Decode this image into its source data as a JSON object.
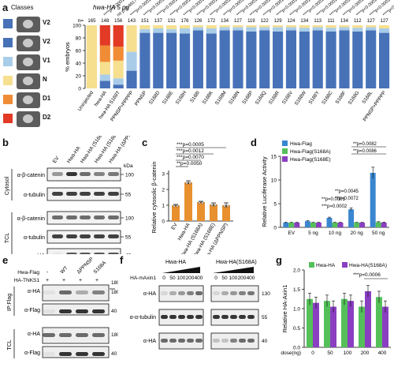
{
  "panels": {
    "a": "a",
    "b": "b",
    "c": "c",
    "d": "d",
    "e": "e",
    "f": "f",
    "g": "g"
  },
  "colors": {
    "V2": "#4872b8",
    "V1": "#a9cde8",
    "N": "#f6df8f",
    "D1": "#f08c36",
    "D2": "#e23a25",
    "c_bar": "#e8902e",
    "blue": "#3a86d0",
    "green": "#55c05a",
    "purple": "#8a3fc1"
  },
  "panel_a": {
    "classes_title": "Classes",
    "classes": [
      "V2",
      "V2",
      "V1",
      "N",
      "D1",
      "D2"
    ],
    "header": "hwa-HA 5 pg",
    "n_label": "n=",
    "ylabel": "% embryos",
    "yticks": [
      "0",
      "20",
      "40",
      "60",
      "80",
      "100"
    ],
    "pvals_near": [
      "****p<0.0001",
      "ns p=0.4917"
    ],
    "pval_generic": "****p<0.0001",
    "pval_count": 20,
    "chart_data": {
      "type": "bar",
      "stacked": true,
      "categories": [
        "Uninjected",
        "hwa-HA",
        "hwa-HA S168T",
        "PPNSP>PPPPP",
        "PPNSP",
        "S168D",
        "S168E",
        "S168H",
        "S168I",
        "S168K",
        "S168M",
        "S168N",
        "S168P",
        "S168Q",
        "S168R",
        "S168V",
        "S168W",
        "S168Y",
        "S168C",
        "S168F",
        "S168G",
        "S168L",
        "PPNSP>PPPPP"
      ],
      "n": [
        165,
        148,
        156,
        143,
        151,
        137,
        131,
        176,
        126,
        172,
        134,
        127,
        119,
        122,
        129,
        124,
        134,
        113,
        111,
        134,
        112,
        127,
        127
      ],
      "series": [
        {
          "name": "V2",
          "values": [
            0,
            12,
            6,
            28,
            88,
            88,
            88,
            87,
            92,
            87,
            92,
            92,
            90,
            92,
            90,
            92,
            90,
            92,
            90,
            92,
            90,
            92,
            88
          ]
        },
        {
          "name": "V1",
          "values": [
            0,
            10,
            10,
            30,
            6,
            7,
            6,
            8,
            5,
            8,
            5,
            5,
            7,
            5,
            7,
            5,
            6,
            5,
            6,
            5,
            6,
            5,
            7
          ]
        },
        {
          "name": "N",
          "values": [
            100,
            20,
            28,
            42,
            6,
            5,
            6,
            5,
            3,
            5,
            3,
            3,
            3,
            3,
            3,
            3,
            4,
            3,
            4,
            3,
            4,
            3,
            5
          ]
        },
        {
          "name": "D1",
          "values": [
            0,
            26,
            22,
            0,
            0,
            0,
            0,
            0,
            0,
            0,
            0,
            0,
            0,
            0,
            0,
            0,
            0,
            0,
            0,
            0,
            0,
            0,
            0
          ]
        },
        {
          "name": "D2",
          "values": [
            0,
            32,
            34,
            0,
            0,
            0,
            0,
            0,
            0,
            0,
            0,
            0,
            0,
            0,
            0,
            0,
            0,
            0,
            0,
            0,
            0,
            0,
            0
          ]
        }
      ],
      "ylim": [
        0,
        100
      ]
    }
  },
  "panel_b": {
    "lanes": [
      "EV",
      "Hwa-HA",
      "Hwa-HA (S168A)",
      "Hwa-HA (S168E)",
      "Hwa-HA (ΔPPNSP)"
    ],
    "kda": "kDa",
    "groups": [
      {
        "name": "Cytosol",
        "rows": [
          "α-β-catenin",
          "α-tubulin"
        ],
        "mw": [
          "100",
          "55"
        ]
      },
      {
        "name": "TCL",
        "rows": [
          "α-β-catenin",
          "α-tubulin",
          "α-HA"
        ],
        "mw": [
          "100",
          "55",
          "40"
        ]
      }
    ]
  },
  "panel_c": {
    "ylabel": "Relative cytosolic β-catenin",
    "yticks": [
      "0",
      "1",
      "2",
      "3"
    ],
    "pvals": [
      "***p=0.0005",
      "***p=0.0012",
      "***p=0.0070",
      "**p=0.0050"
    ],
    "chart_data": {
      "type": "bar",
      "categories": [
        "EV",
        "Hwa-HA",
        "Hwa-HA (S168A)",
        "Hwa-HA (S168E)",
        "Hwa-HA (ΔPPNSP)"
      ],
      "values": [
        1.0,
        2.45,
        1.2,
        1.05,
        1.0
      ],
      "errors": [
        0.05,
        0.1,
        0.05,
        0.1,
        0.15
      ],
      "ylim": [
        0,
        3
      ]
    }
  },
  "panel_d": {
    "ylabel": "Relative Luciferase Activity",
    "yticks": [
      "0",
      "5",
      "10",
      "15"
    ],
    "pvals": [
      "**p=0.0082",
      "**p=0.0086",
      "**p=0.0045",
      "**p=0.0072",
      "**p=0.0001",
      "***p=0.0002"
    ],
    "chart_data": {
      "type": "bar",
      "categories": [
        "EV",
        "5 ng",
        "10 ng",
        "20 ng",
        "50 ng"
      ],
      "series": [
        {
          "name": "Hwa-Flag",
          "values": [
            1.0,
            1.3,
            2.0,
            3.8,
            11.5
          ],
          "errors": [
            0.1,
            0.1,
            0.15,
            0.3,
            1.2
          ]
        },
        {
          "name": "Hwa-Flag(S168A)",
          "values": [
            1.0,
            1.0,
            1.0,
            1.0,
            1.1
          ],
          "errors": [
            0.05,
            0.05,
            0.05,
            0.05,
            0.1
          ]
        },
        {
          "name": "Hwa-Flag(S168E)",
          "values": [
            1.0,
            1.0,
            1.0,
            1.0,
            1.0
          ],
          "errors": [
            0.05,
            0.05,
            0.05,
            0.05,
            0.1
          ]
        }
      ],
      "ylim": [
        0,
        15
      ]
    }
  },
  "panel_e": {
    "rows": [
      {
        "label": "Hwa-Flag",
        "marks": [
          "-",
          "WT",
          "ΔPPNSP",
          "S168A"
        ]
      },
      {
        "label": "HA-TNKS1",
        "marks": [
          "+",
          "+",
          "+",
          "+"
        ]
      }
    ],
    "groups": [
      {
        "name": "IP:Flag",
        "rows": [
          "α-HA",
          "α-Flag"
        ],
        "mw": [
          "180",
          "40"
        ]
      },
      {
        "name": "TCL",
        "rows": [
          "α-HA",
          "α-Flag"
        ],
        "mw": [
          "180",
          "40"
        ]
      }
    ],
    "mw_top": "180"
  },
  "panel_f": {
    "left_title": "Hwa-HA",
    "right_title": "Hwa-HA(S168A)",
    "row_label": "HA-mAxin1",
    "doses": [
      "0",
      "50",
      "100",
      "200",
      "400",
      "0",
      "50",
      "100",
      "200",
      "400"
    ],
    "blots": [
      "α-HA",
      "α-α-tubulin",
      "α-HA"
    ],
    "mw": [
      "130",
      "55",
      "40"
    ]
  },
  "panel_g": {
    "ylabel": "Relative HA-Axin1",
    "xlabel": "dose(ng)",
    "yticks": [
      "0.0",
      "0.5",
      "1.0",
      "1.5",
      "2.0"
    ],
    "pval": "***p=0.0006",
    "chart_data": {
      "type": "bar",
      "categories": [
        "0",
        "50",
        "100",
        "200",
        "400"
      ],
      "series": [
        {
          "name": "Hwa-HA",
          "values": [
            1.25,
            1.2,
            1.25,
            1.05,
            1.3
          ]
        },
        {
          "name": "Hwa-HA(S168A)",
          "values": [
            1.15,
            1.05,
            1.2,
            1.45,
            1.05
          ]
        }
      ],
      "ylim": [
        0,
        2
      ]
    }
  }
}
